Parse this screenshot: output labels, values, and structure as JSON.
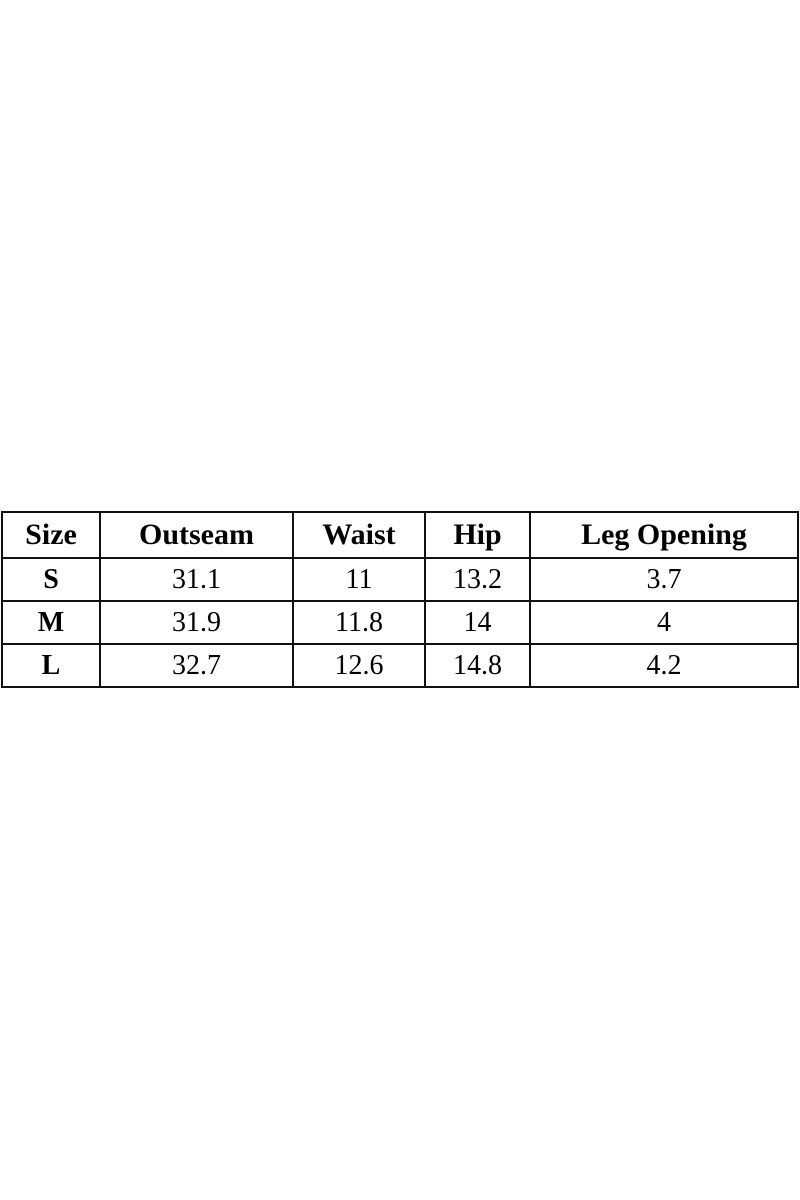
{
  "table": {
    "headers": [
      "Size",
      "Outseam",
      "Waist",
      "Hip",
      "Leg Opening"
    ],
    "rows": [
      [
        "S",
        "31.1",
        "11",
        "13.2",
        "3.7"
      ],
      [
        "M",
        "31.9",
        "11.8",
        "14",
        "4"
      ],
      [
        "L",
        "32.7",
        "12.6",
        "14.8",
        "4.2"
      ]
    ]
  }
}
